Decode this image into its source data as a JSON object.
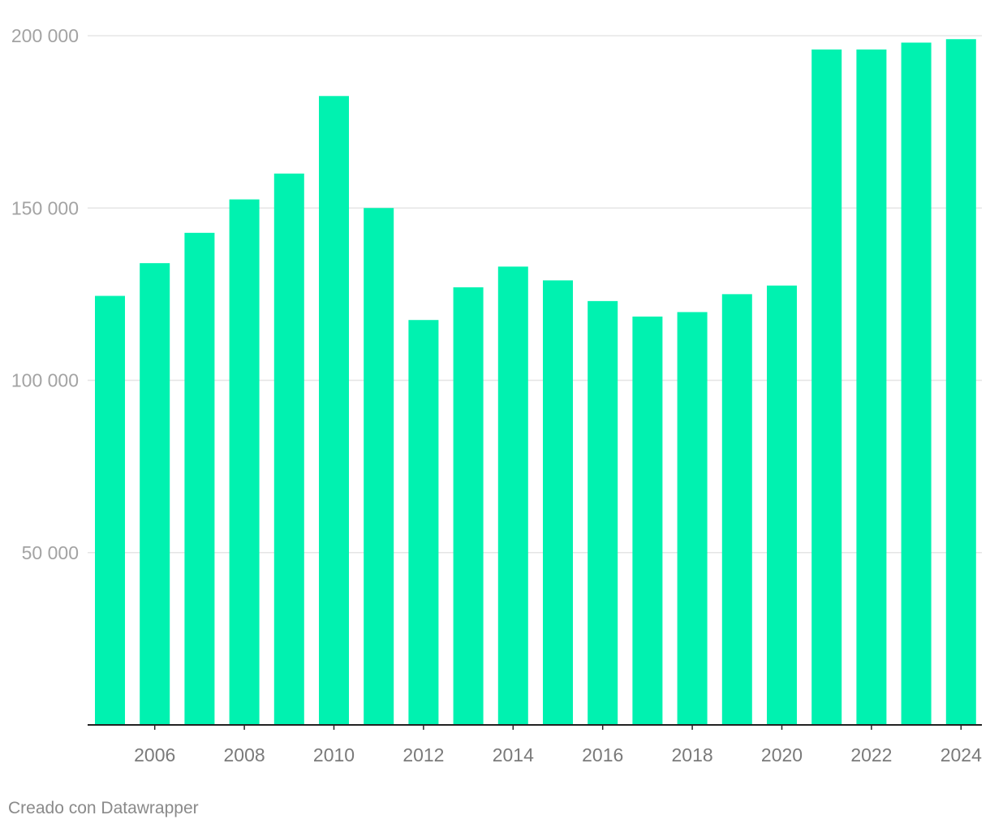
{
  "chart_data": {
    "type": "bar",
    "categories": [
      "2005",
      "2006",
      "2007",
      "2008",
      "2009",
      "2010",
      "2011",
      "2012",
      "2013",
      "2014",
      "2015",
      "2016",
      "2017",
      "2018",
      "2019",
      "2020",
      "2021",
      "2022",
      "2023",
      "2024"
    ],
    "values": [
      124500,
      134000,
      142800,
      152500,
      160000,
      182500,
      150000,
      117500,
      127000,
      133000,
      129000,
      123000,
      118500,
      119800,
      125000,
      127500,
      196000,
      196000,
      198000,
      199000
    ],
    "x_tick_labels": [
      "2006",
      "2008",
      "2010",
      "2012",
      "2014",
      "2016",
      "2018",
      "2020",
      "2022",
      "2024"
    ],
    "y_ticks": [
      50000,
      100000,
      150000,
      200000
    ],
    "y_tick_labels": [
      "50 000",
      "100 000",
      "150 000",
      "200 000"
    ],
    "ylim": [
      0,
      200000
    ],
    "title": "",
    "xlabel": "",
    "ylabel": "",
    "grid": true,
    "bar_color": "#00f2b0",
    "grid_color": "#e5e5e5",
    "axis_color": "#222222"
  },
  "footer": {
    "credit": "Creado con Datawrapper"
  }
}
